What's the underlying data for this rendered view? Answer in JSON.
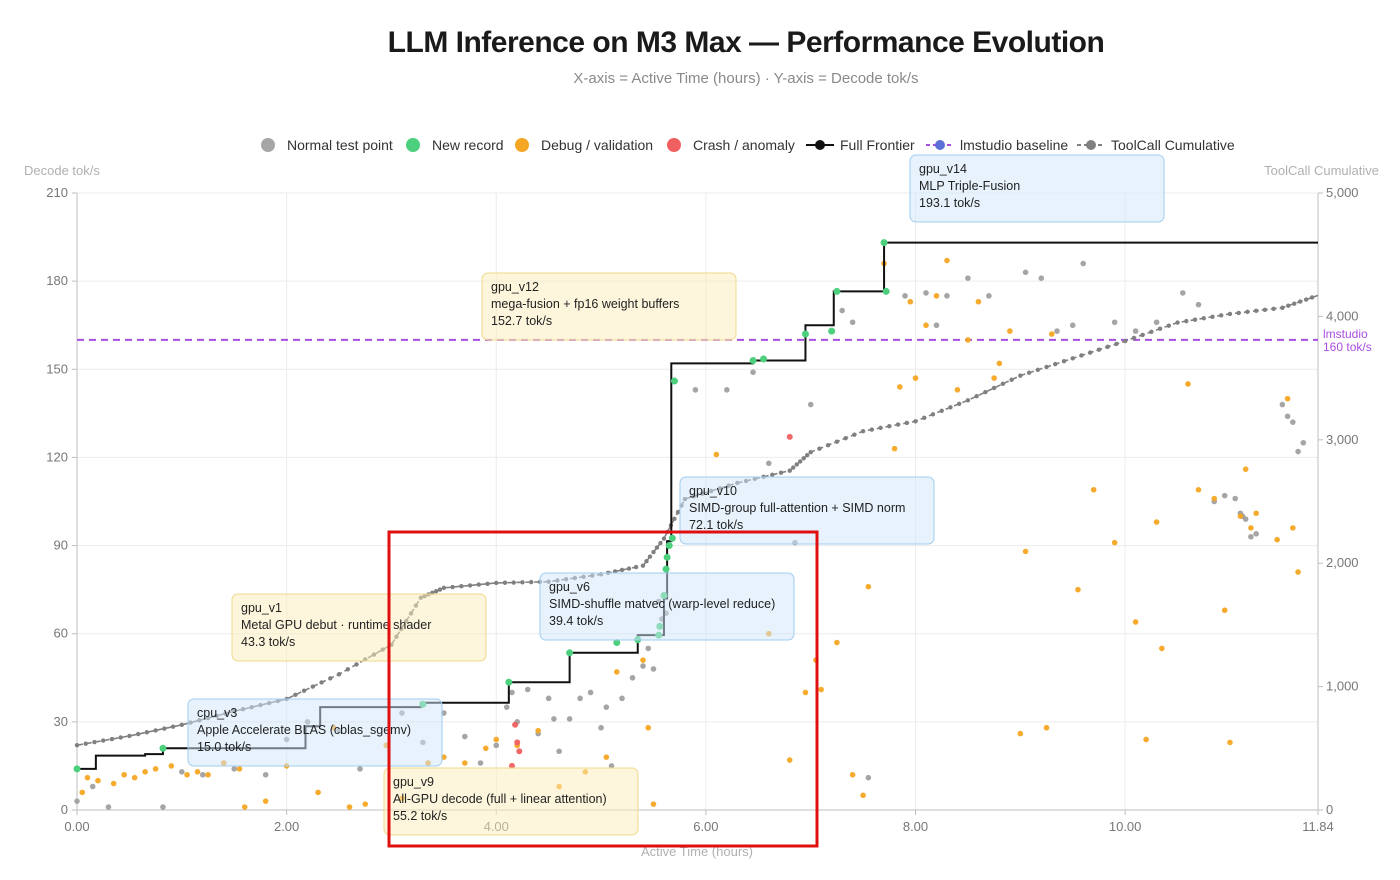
{
  "chart_data": {
    "type": "scatter",
    "title": "LLM Inference on M3 Max — Performance Evolution",
    "subtitle": "X-axis = Active Time (hours) · Y-axis = Decode tok/s",
    "xlabel": "Active Time (hours)",
    "ylabel": "Decode tok/s",
    "y2label": "ToolCall Cumulative",
    "xlim": [
      0,
      11.84
    ],
    "ylim": [
      0,
      210
    ],
    "y2lim": [
      0,
      5000
    ],
    "xticks": [
      "0.00",
      "2.00",
      "4.00",
      "6.00",
      "8.00",
      "10.00",
      "11.84"
    ],
    "xtick_values": [
      0,
      2,
      4,
      6,
      8,
      10,
      11.84
    ],
    "yticks": [
      "0",
      "30",
      "60",
      "90",
      "120",
      "150",
      "180",
      "210"
    ],
    "y2ticks": [
      "0",
      "1,000",
      "2,000",
      "3,000",
      "4,000",
      "5,000"
    ],
    "grid": true,
    "legend": {
      "position": "top-center",
      "items": [
        {
          "label": "Normal test point",
          "kind": "dot",
          "color": "#a6a6a6"
        },
        {
          "label": "New record",
          "kind": "dot",
          "color": "#4cd07d"
        },
        {
          "label": "Debug / validation",
          "kind": "dot",
          "color": "#f5a623"
        },
        {
          "label": "Crash / anomaly",
          "kind": "dot",
          "color": "#f06060"
        },
        {
          "label": "Full Frontier",
          "kind": "line",
          "color": "#111111"
        },
        {
          "label": "lmstudio baseline",
          "kind": "dashline",
          "color": "#a94ee0",
          "marker": "#5b6fd6"
        },
        {
          "label": "ToolCall Cumulative",
          "kind": "dashline",
          "color": "#808080",
          "marker": "#808080"
        }
      ]
    },
    "baseline": {
      "name": "lmstudio",
      "value": 160,
      "label_line1": "lmstudio",
      "label_line2": "160 tok/s",
      "color": "#a94ee0"
    },
    "frontier": {
      "name": "Full Frontier",
      "color": "#111111",
      "x": [
        0.0,
        0.18,
        0.18,
        0.65,
        0.65,
        0.82,
        0.82,
        2.18,
        2.18,
        2.32,
        2.32,
        3.28,
        3.28,
        4.12,
        4.12,
        4.7,
        4.7,
        5.35,
        5.35,
        5.6,
        5.6,
        5.63,
        5.63,
        5.67,
        5.67,
        6.45,
        6.45,
        6.95,
        6.95,
        7.22,
        7.22,
        7.7,
        7.7,
        11.84
      ],
      "y": [
        14,
        14,
        18.5,
        18.5,
        19,
        19,
        21,
        21,
        28.5,
        28.5,
        35,
        35,
        36.5,
        36.5,
        43.5,
        43.5,
        53.5,
        53.5,
        59.5,
        59.5,
        72,
        72,
        91.5,
        91.5,
        152,
        152,
        153,
        153,
        165,
        165,
        176.5,
        176.5,
        193.1,
        193.1
      ]
    },
    "new_records": {
      "x": [
        0.0,
        0.82,
        3.3,
        4.12,
        4.7,
        5.15,
        5.35,
        5.55,
        5.56,
        5.6,
        5.62,
        5.63,
        5.65,
        5.68,
        5.7,
        6.45,
        6.55,
        6.95,
        7.2,
        7.25,
        7.7,
        7.72
      ],
      "y": [
        14,
        21,
        36,
        43.5,
        53.5,
        57,
        58,
        59.5,
        62.5,
        73,
        82,
        86,
        90,
        92.5,
        146,
        153,
        153.5,
        162,
        163,
        176.5,
        193.1,
        176.5
      ]
    },
    "normal_points": {
      "x": [
        0.0,
        0.15,
        0.3,
        0.82,
        1.0,
        1.2,
        1.5,
        1.8,
        2.0,
        2.2,
        2.5,
        2.7,
        3.1,
        3.3,
        3.5,
        3.7,
        3.85,
        4.0,
        4.1,
        4.15,
        4.2,
        4.3,
        4.4,
        4.5,
        4.55,
        4.6,
        4.7,
        4.8,
        4.9,
        5.0,
        5.05,
        5.1,
        5.2,
        5.3,
        5.4,
        5.45,
        5.5,
        5.55,
        5.58,
        5.62,
        5.9,
        6.2,
        6.45,
        6.6,
        6.85,
        7.0,
        7.3,
        7.4,
        7.55,
        7.9,
        8.1,
        8.2,
        8.3,
        8.5,
        8.7,
        9.05,
        9.2,
        9.35,
        9.5,
        9.6,
        9.9,
        10.1,
        10.3,
        10.55,
        10.7,
        10.85,
        10.95,
        11.05,
        11.1,
        11.12,
        11.15,
        11.2,
        11.25,
        11.5,
        11.55,
        11.6,
        11.65,
        11.7
      ],
      "y": [
        3,
        8,
        1,
        1,
        13,
        12,
        14,
        12,
        24,
        30,
        27,
        14,
        33,
        23,
        33,
        25,
        16,
        22,
        35,
        40,
        30,
        41,
        26,
        38,
        31,
        20,
        31,
        38,
        40,
        28,
        35,
        15,
        38,
        45,
        49,
        55,
        48,
        71,
        65,
        67,
        143,
        143,
        149,
        118,
        91,
        138,
        170,
        166,
        11,
        175,
        176,
        165,
        175,
        181,
        175,
        183,
        181,
        163,
        165,
        186,
        166,
        163,
        166,
        176,
        172,
        105,
        107,
        106,
        101,
        100,
        99,
        93,
        94,
        138,
        134,
        132,
        122,
        125
      ]
    },
    "debug_points": {
      "x": [
        0.05,
        0.1,
        0.2,
        0.35,
        0.45,
        0.55,
        0.65,
        0.75,
        0.9,
        1.05,
        1.15,
        1.25,
        1.4,
        1.55,
        1.6,
        1.8,
        2.0,
        2.3,
        2.45,
        2.6,
        2.75,
        2.95,
        3.1,
        3.35,
        3.5,
        3.7,
        3.9,
        4.0,
        4.2,
        4.4,
        4.6,
        4.85,
        5.05,
        5.15,
        5.4,
        5.45,
        5.5,
        6.1,
        6.6,
        6.8,
        6.95,
        7.05,
        7.1,
        7.25,
        7.4,
        7.5,
        7.55,
        7.7,
        7.8,
        7.85,
        7.95,
        8.0,
        8.1,
        8.2,
        8.3,
        8.4,
        8.5,
        8.6,
        8.75,
        8.8,
        8.9,
        9.0,
        9.05,
        9.25,
        9.3,
        9.55,
        9.7,
        9.9,
        10.1,
        10.2,
        10.3,
        10.35,
        10.6,
        10.7,
        10.85,
        10.95,
        11.0,
        11.1,
        11.15,
        11.2,
        11.25,
        11.45,
        11.55,
        11.6,
        11.65
      ],
      "y": [
        6,
        11,
        10,
        9,
        12,
        11,
        13,
        14,
        15,
        12,
        13,
        12,
        16,
        14,
        1,
        3,
        15,
        6,
        28,
        1,
        2,
        22,
        4,
        16,
        18,
        16,
        21,
        24,
        22,
        27,
        8,
        13,
        18,
        47,
        51,
        28,
        2,
        121,
        60,
        17,
        40,
        51,
        41,
        57,
        12,
        5,
        76,
        186,
        123,
        144,
        173,
        147,
        165,
        175,
        187,
        143,
        160,
        173,
        147,
        152,
        163,
        26,
        88,
        28,
        162,
        75,
        109,
        91,
        64,
        24,
        98,
        55,
        145,
        109,
        106,
        68,
        23,
        100,
        116,
        96,
        101,
        92,
        140,
        96,
        81
      ]
    },
    "crash_points": {
      "x": [
        4.18,
        4.2,
        4.15,
        4.22,
        6.8
      ],
      "y": [
        29,
        23,
        15,
        20,
        127
      ]
    },
    "toolcall_cumulative": {
      "name": "ToolCall Cumulative",
      "color": "#808080",
      "x": [
        0.0,
        0.5,
        1.0,
        1.5,
        2.0,
        2.5,
        3.0,
        3.28,
        3.5,
        4.0,
        4.5,
        5.0,
        5.4,
        5.6,
        5.8,
        6.3,
        6.8,
        7.0,
        7.5,
        8.0,
        8.5,
        9.0,
        9.5,
        10.0,
        10.5,
        11.0,
        11.5,
        11.84
      ],
      "y": [
        525,
        600,
        690,
        800,
        900,
        1100,
        1340,
        1720,
        1800,
        1840,
        1850,
        1910,
        1980,
        2200,
        2520,
        2650,
        2750,
        2900,
        3070,
        3150,
        3320,
        3520,
        3660,
        3800,
        3950,
        4020,
        4070,
        4170
      ]
    },
    "annotations": [
      {
        "id": "cpu_v3",
        "line1": "cpu_v3",
        "line2": "Apple Accelerate BLAS (cblas_sgemv)",
        "line3": "15.0 tok/s",
        "style": "blue"
      },
      {
        "id": "gpu_v1",
        "line1": "gpu_v1",
        "line2": "Metal GPU debut · runtime shader",
        "line3": "43.3 tok/s",
        "style": "yellow"
      },
      {
        "id": "gpu_v9",
        "line1": "gpu_v9",
        "line2": "All-GPU decode (full + linear attention)",
        "line3": "55.2 tok/s",
        "style": "yellow"
      },
      {
        "id": "gpu_v6",
        "line1": "gpu_v6",
        "line2": "SIMD-shuffle matvec (warp-level reduce)",
        "line3": "39.4 tok/s",
        "style": "blue"
      },
      {
        "id": "gpu_v10",
        "line1": "gpu_v10",
        "line2": "SIMD-group full-attention + SIMD norm",
        "line3": "72.1 tok/s",
        "style": "blue"
      },
      {
        "id": "gpu_v12",
        "line1": "gpu_v12",
        "line2": "mega-fusion + fp16 weight buffers",
        "line3": "152.7 tok/s",
        "style": "yellow"
      },
      {
        "id": "gpu_v14",
        "line1": "gpu_v14",
        "line2": "MLP Triple-Fusion",
        "line3": "193.1 tok/s",
        "style": "blue"
      }
    ]
  }
}
